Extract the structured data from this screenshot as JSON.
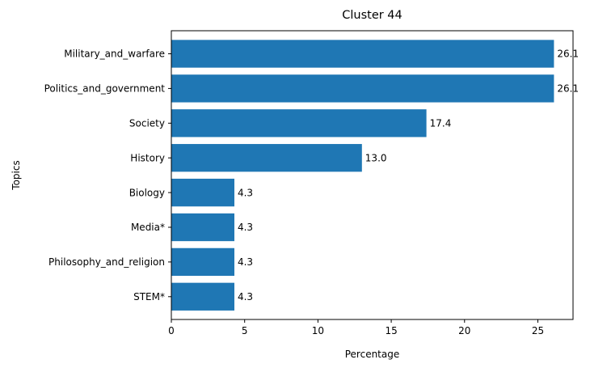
{
  "chart_data": {
    "type": "bar",
    "orientation": "horizontal",
    "title": "Cluster 44",
    "xlabel": "Percentage",
    "ylabel": "Topics",
    "categories": [
      "Military_and_warfare",
      "Politics_and_government",
      "Society",
      "History",
      "Biology",
      "Media*",
      "Philosophy_and_religion",
      "STEM*"
    ],
    "values": [
      26.1,
      26.1,
      17.4,
      13.0,
      4.3,
      4.3,
      4.3,
      4.3
    ],
    "data_labels": [
      "26.1",
      "26.1",
      "17.4",
      "13.0",
      "4.3",
      "4.3",
      "4.3",
      "4.3"
    ],
    "xlim": [
      0,
      27.4
    ],
    "xticks": [
      0,
      5,
      10,
      15,
      20,
      25
    ],
    "grid": false,
    "bar_color": "#1f77b4"
  }
}
